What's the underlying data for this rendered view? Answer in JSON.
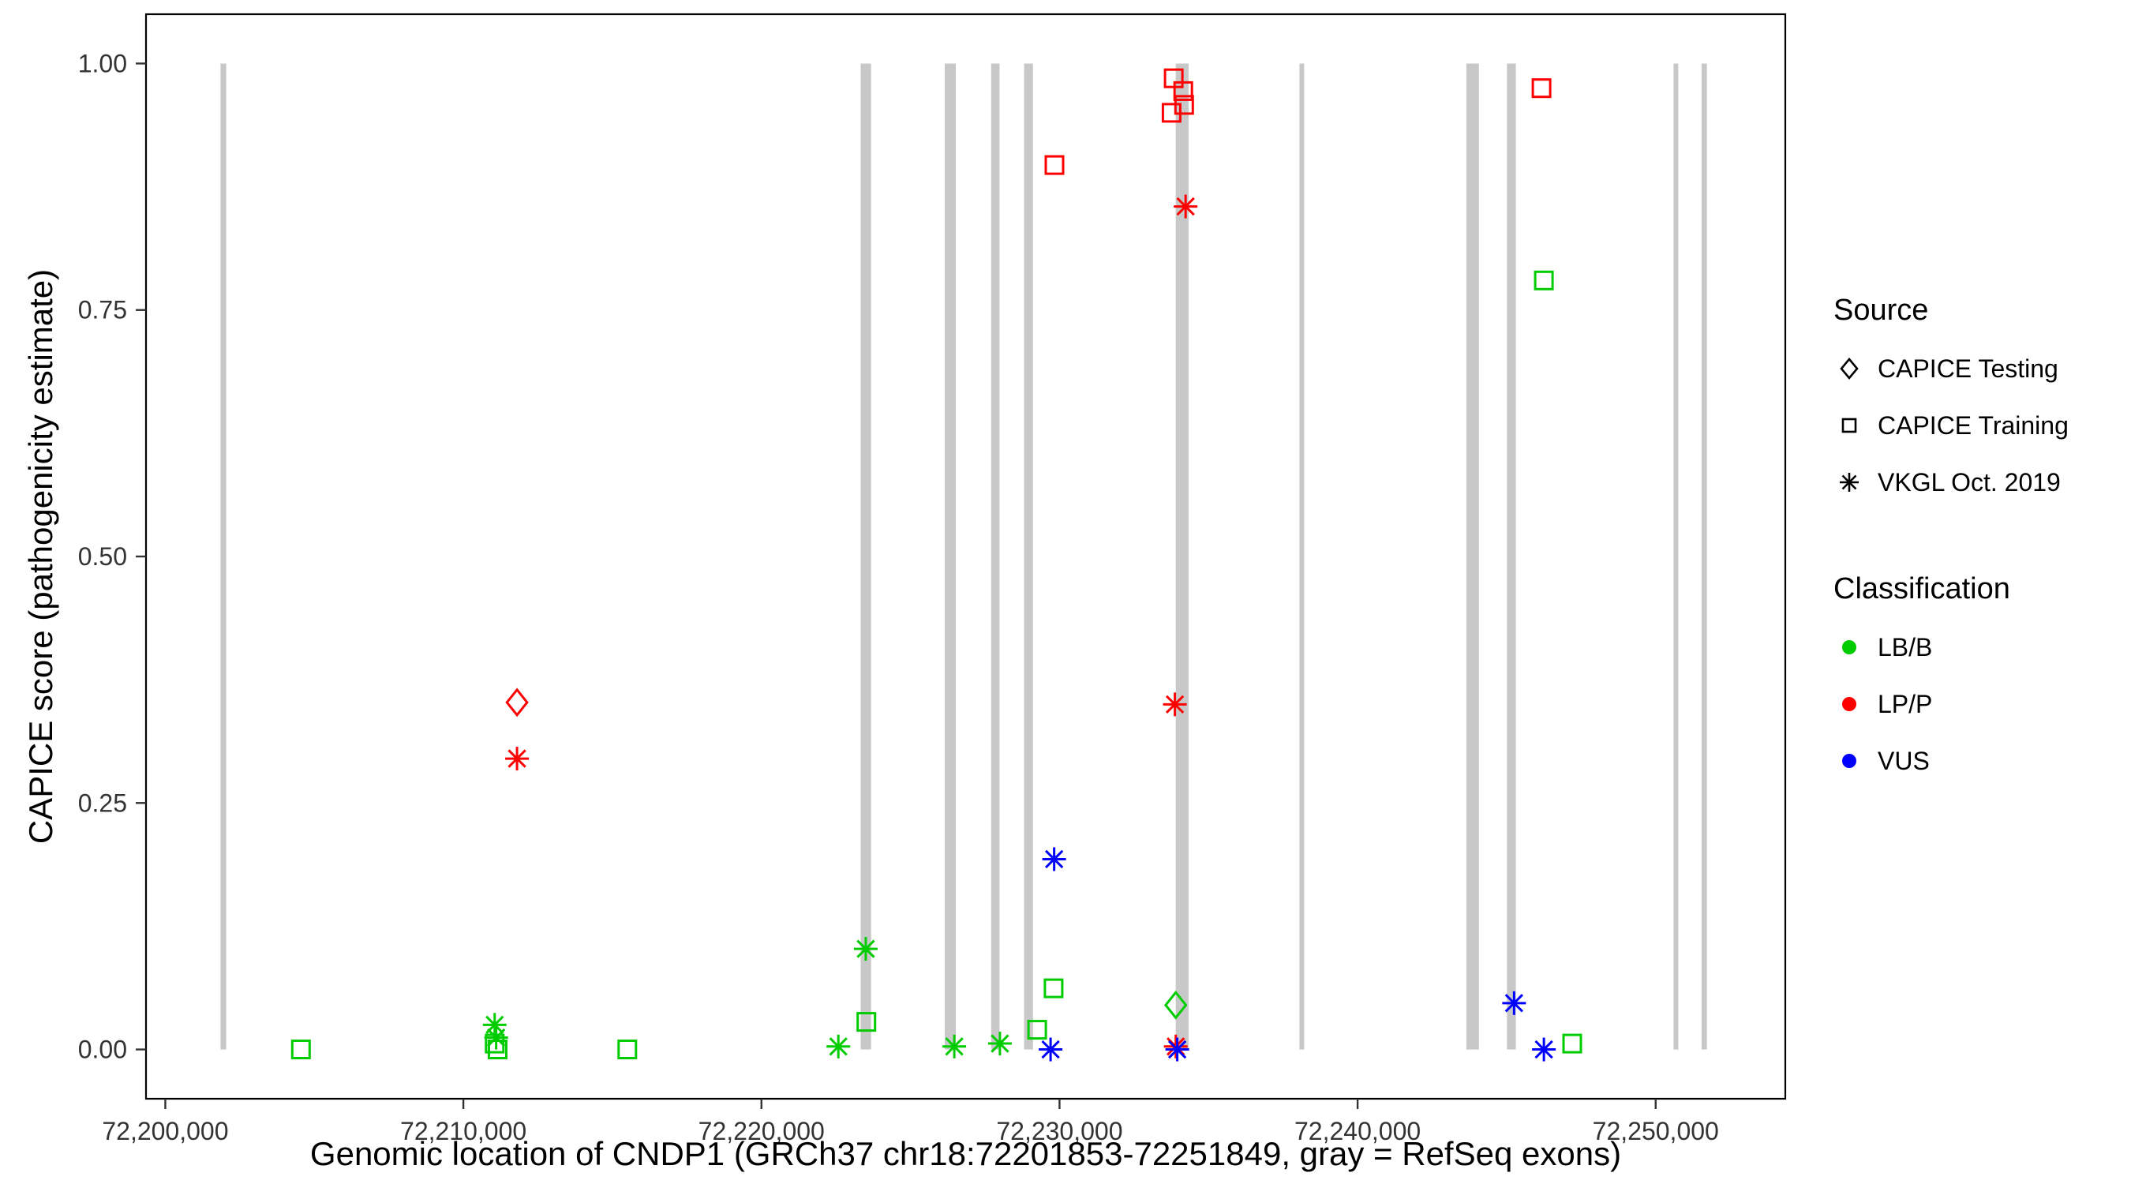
{
  "chart_data": {
    "type": "scatter",
    "title": "",
    "xlabel": "Genomic location of CNDP1 (GRCh37 chr18:72201853-72251849, gray = RefSeq exons)",
    "ylabel": "CAPICE score (pathogenicity estimate)",
    "x_domain": [
      72199353,
      72254349
    ],
    "y_domain": [
      -0.05,
      1.05
    ],
    "grid": false,
    "x_ticks": [
      {
        "value": 72200000,
        "label": "72,200,000"
      },
      {
        "value": 72210000,
        "label": "72,210,000"
      },
      {
        "value": 72220000,
        "label": "72,220,000"
      },
      {
        "value": 72230000,
        "label": "72,230,000"
      },
      {
        "value": 72240000,
        "label": "72,240,000"
      },
      {
        "value": 72250000,
        "label": "72,250,000"
      }
    ],
    "y_ticks": [
      {
        "value": 0.0,
        "label": "0.00"
      },
      {
        "value": 0.25,
        "label": "0.25"
      },
      {
        "value": 0.5,
        "label": "0.50"
      },
      {
        "value": 0.75,
        "label": "0.75"
      },
      {
        "value": 1.0,
        "label": "1.00"
      }
    ],
    "exon_color": "#C8C8C8",
    "exons": [
      {
        "start": 72201853,
        "end": 72202043
      },
      {
        "start": 72223330,
        "end": 72223680
      },
      {
        "start": 72226150,
        "end": 72226520
      },
      {
        "start": 72227705,
        "end": 72227985
      },
      {
        "start": 72228810,
        "end": 72229110
      },
      {
        "start": 72233900,
        "end": 72234330
      },
      {
        "start": 72238050,
        "end": 72238210
      },
      {
        "start": 72243650,
        "end": 72244070
      },
      {
        "start": 72245010,
        "end": 72245310
      },
      {
        "start": 72250600,
        "end": 72250760
      },
      {
        "start": 72251540,
        "end": 72251720
      }
    ],
    "colors": {
      "LB/B": "#00CC00",
      "LP/P": "#FF0000",
      "VUS": "#0000FF"
    },
    "shapes": {
      "CAPICE Testing": "diamond",
      "CAPICE Training": "square",
      "VKGL Oct. 2019": "asterisk"
    },
    "points": [
      {
        "x": 72204550,
        "y": 0.0,
        "shape": "square",
        "class": "LB/B"
      },
      {
        "x": 72211050,
        "y": 0.025,
        "shape": "asterisk",
        "class": "LB/B"
      },
      {
        "x": 72211100,
        "y": 0.012,
        "shape": "asterisk",
        "class": "LB/B"
      },
      {
        "x": 72211050,
        "y": 0.006,
        "shape": "square",
        "class": "LB/B"
      },
      {
        "x": 72211150,
        "y": 0.0,
        "shape": "square",
        "class": "LB/B"
      },
      {
        "x": 72215500,
        "y": 0.0,
        "shape": "square",
        "class": "LB/B"
      },
      {
        "x": 72222580,
        "y": 0.003,
        "shape": "asterisk",
        "class": "LB/B"
      },
      {
        "x": 72223500,
        "y": 0.102,
        "shape": "asterisk",
        "class": "LB/B"
      },
      {
        "x": 72223520,
        "y": 0.028,
        "shape": "square",
        "class": "LB/B"
      },
      {
        "x": 72226470,
        "y": 0.003,
        "shape": "asterisk",
        "class": "LB/B"
      },
      {
        "x": 72228000,
        "y": 0.006,
        "shape": "asterisk",
        "class": "LB/B"
      },
      {
        "x": 72229250,
        "y": 0.02,
        "shape": "square",
        "class": "LB/B"
      },
      {
        "x": 72229800,
        "y": 0.062,
        "shape": "square",
        "class": "LB/B"
      },
      {
        "x": 72233900,
        "y": 0.045,
        "shape": "diamond",
        "class": "LB/B"
      },
      {
        "x": 72246250,
        "y": 0.78,
        "shape": "square",
        "class": "LB/B"
      },
      {
        "x": 72247200,
        "y": 0.006,
        "shape": "square",
        "class": "LB/B"
      },
      {
        "x": 72211800,
        "y": 0.352,
        "shape": "diamond",
        "class": "LP/P"
      },
      {
        "x": 72211800,
        "y": 0.295,
        "shape": "asterisk",
        "class": "LP/P"
      },
      {
        "x": 72229830,
        "y": 0.897,
        "shape": "square",
        "class": "LP/P"
      },
      {
        "x": 72233830,
        "y": 0.985,
        "shape": "square",
        "class": "LP/P"
      },
      {
        "x": 72234150,
        "y": 0.972,
        "shape": "square",
        "class": "LP/P"
      },
      {
        "x": 72234180,
        "y": 0.958,
        "shape": "square",
        "class": "LP/P"
      },
      {
        "x": 72233760,
        "y": 0.95,
        "shape": "square",
        "class": "LP/P"
      },
      {
        "x": 72234230,
        "y": 0.855,
        "shape": "asterisk",
        "class": "LP/P"
      },
      {
        "x": 72233870,
        "y": 0.35,
        "shape": "asterisk",
        "class": "LP/P"
      },
      {
        "x": 72233900,
        "y": 0.003,
        "shape": "asterisk",
        "class": "LP/P"
      },
      {
        "x": 72246170,
        "y": 0.975,
        "shape": "square",
        "class": "LP/P"
      },
      {
        "x": 72229820,
        "y": 0.193,
        "shape": "asterisk",
        "class": "VUS"
      },
      {
        "x": 72229700,
        "y": 0.0,
        "shape": "asterisk",
        "class": "VUS"
      },
      {
        "x": 72233950,
        "y": 0.0,
        "shape": "asterisk",
        "class": "VUS"
      },
      {
        "x": 72245250,
        "y": 0.047,
        "shape": "asterisk",
        "class": "VUS"
      },
      {
        "x": 72246250,
        "y": 0.0,
        "shape": "asterisk",
        "class": "VUS"
      }
    ]
  },
  "legend": {
    "source": {
      "title": "Source",
      "items": [
        {
          "label": "CAPICE Testing",
          "shape": "diamond"
        },
        {
          "label": "CAPICE Training",
          "shape": "square"
        },
        {
          "label": "VKGL Oct. 2019",
          "shape": "asterisk"
        }
      ]
    },
    "classification": {
      "title": "Classification",
      "items": [
        {
          "label": "LB/B",
          "color": "#00CC00"
        },
        {
          "label": "LP/P",
          "color": "#FF0000"
        },
        {
          "label": "VUS",
          "color": "#0000FF"
        }
      ]
    }
  }
}
